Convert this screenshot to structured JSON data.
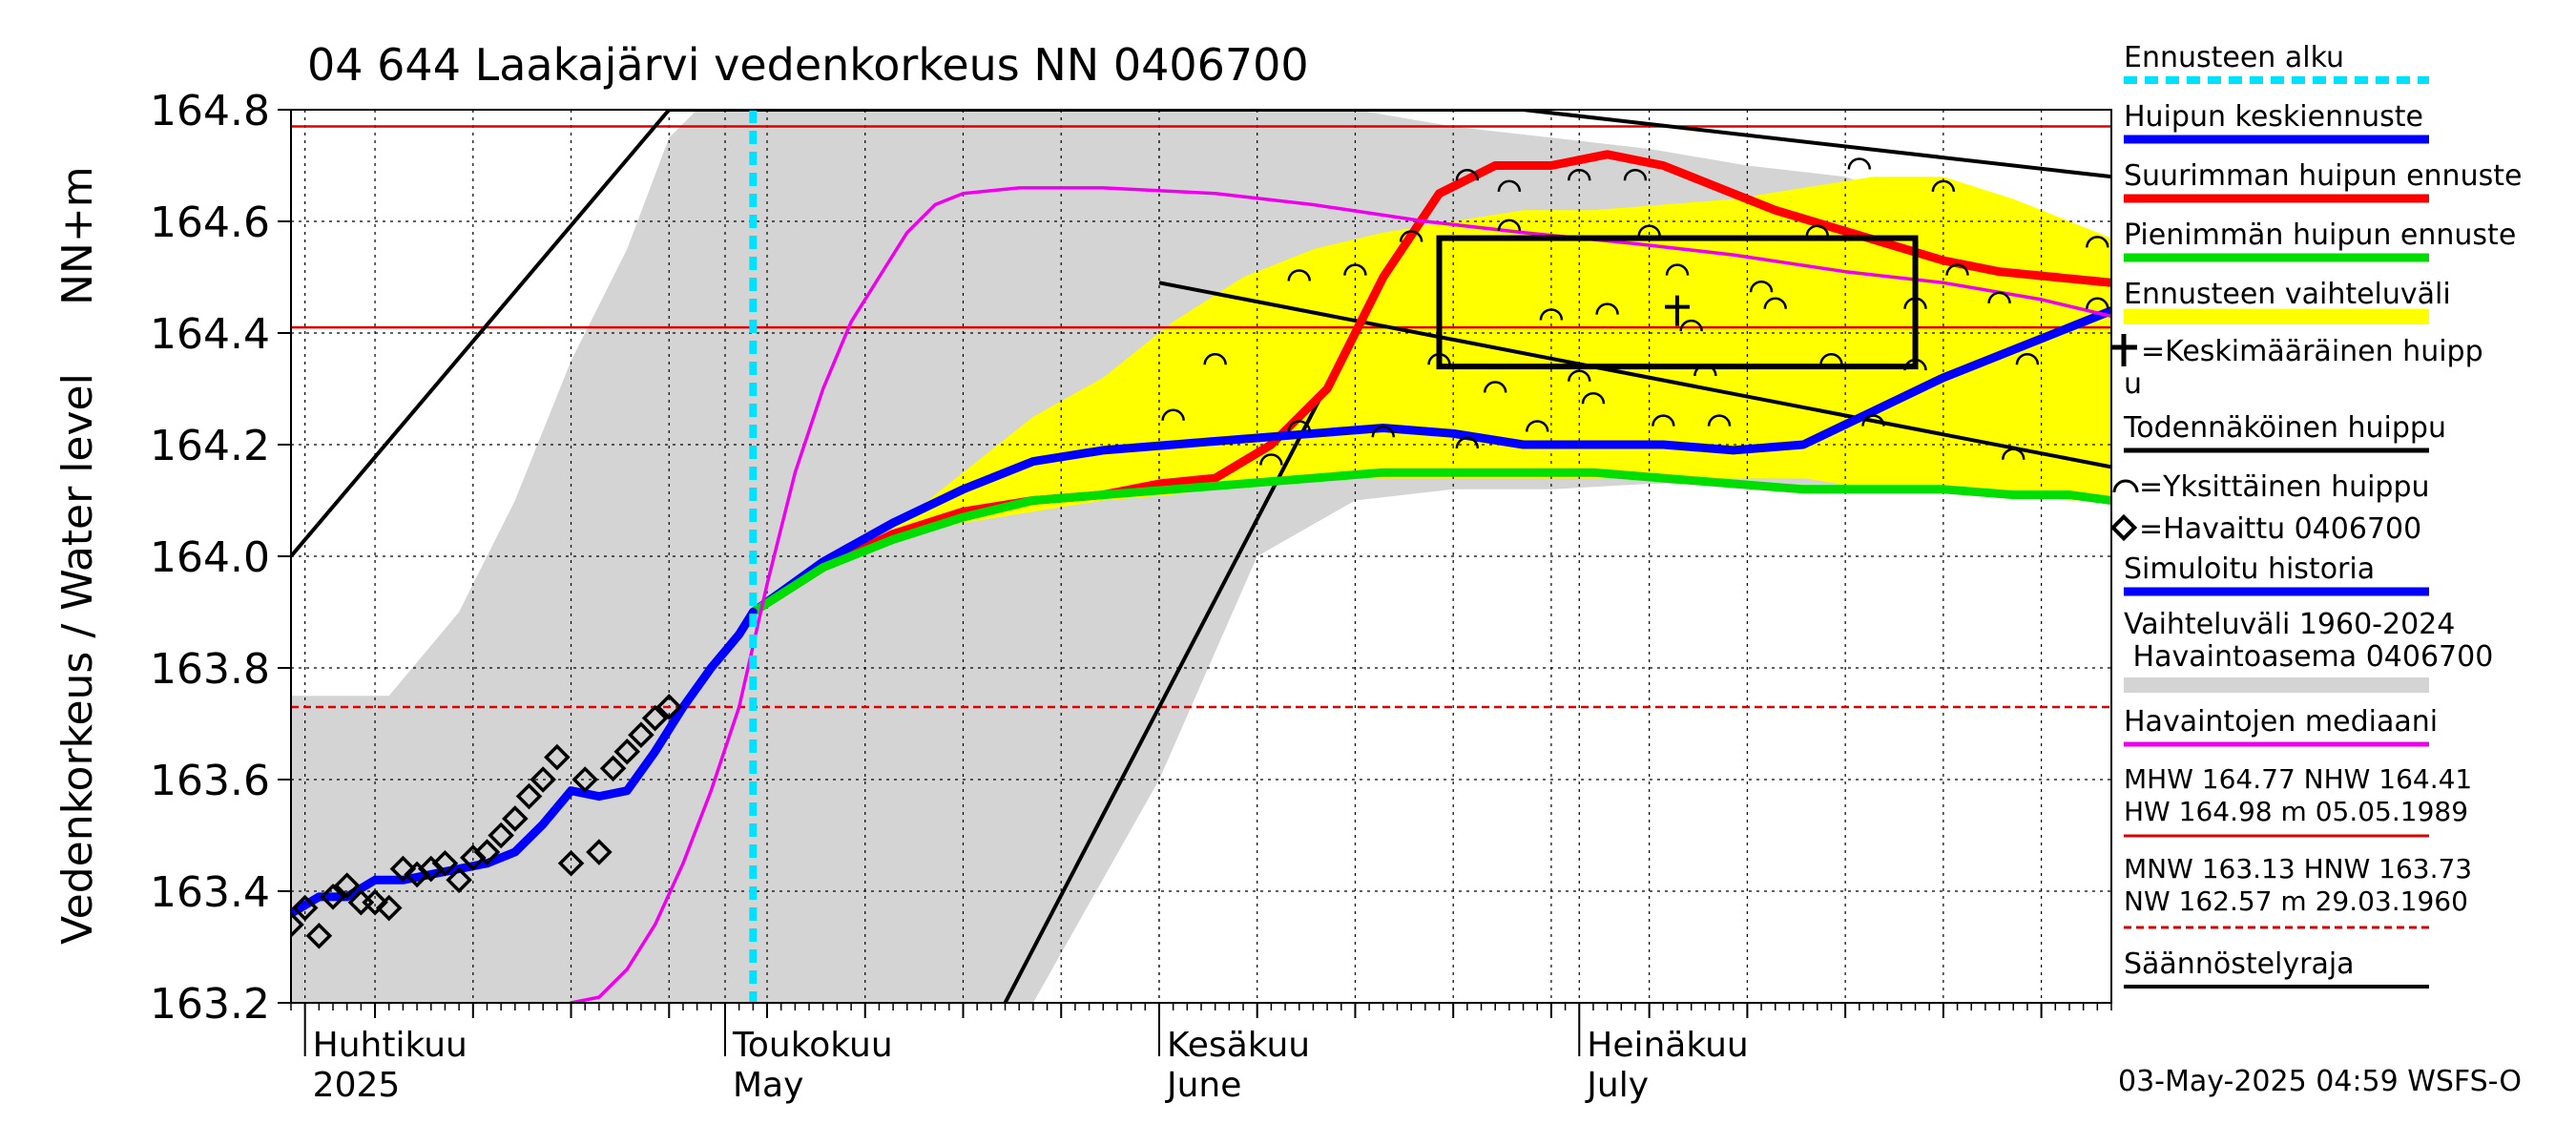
{
  "chart_data": {
    "type": "line",
    "title": "04 644 Laakajärvi vedenkorkeus NN 0406700",
    "ylabel": "Vedenkorkeus / Water level",
    "ylabel_unit": "NN+m",
    "ylim": [
      163.2,
      164.8
    ],
    "yticks": [
      163.2,
      163.4,
      163.6,
      163.8,
      164.0,
      164.2,
      164.4,
      164.6,
      164.8
    ],
    "ytick_labels": [
      "163.2",
      "163.4",
      "163.6",
      "163.8",
      "164.0",
      "164.2",
      "164.4",
      "164.6",
      "164.8"
    ],
    "x_range": [
      "2025-03-31",
      "2025-08-08"
    ],
    "month_labels": [
      {
        "date": "2025-04-01",
        "line1": "Huhtikuu",
        "line2": "2025"
      },
      {
        "date": "2025-05-01",
        "line1": "Toukokuu",
        "line2": "May"
      },
      {
        "date": "2025-06-01",
        "line1": "Kesäkuu",
        "line2": "June"
      },
      {
        "date": "2025-07-01",
        "line1": "Heinäkuu",
        "line2": "July"
      }
    ],
    "grid": true,
    "forecast_start": "2025-05-03",
    "reference_lines": [
      {
        "name": "MHW",
        "value": 164.77,
        "style": "solid",
        "color": "#e00000"
      },
      {
        "name": "NHW",
        "value": 164.41,
        "style": "solid",
        "color": "#e00000"
      },
      {
        "name": "HNW",
        "value": 163.73,
        "style": "dashed",
        "color": "#e00000"
      }
    ],
    "history_range": {
      "x": [
        "2025-03-31",
        "2025-04-07",
        "2025-04-12",
        "2025-04-16",
        "2025-04-20",
        "2025-04-24",
        "2025-04-27",
        "2025-04-29",
        "2025-04-30",
        "2025-05-03",
        "2025-05-10",
        "2025-05-17",
        "2025-05-23",
        "2025-06-01",
        "2025-06-08",
        "2025-06-15",
        "2025-06-22",
        "2025-06-29",
        "2025-07-06",
        "2025-07-13",
        "2025-07-20",
        "2025-07-27",
        "2025-08-03",
        "2025-08-08"
      ],
      "upper": [
        163.75,
        163.75,
        163.9,
        164.1,
        164.35,
        164.55,
        164.75,
        164.8,
        164.8,
        164.8,
        164.8,
        164.8,
        164.8,
        164.8,
        164.8,
        164.8,
        164.77,
        164.75,
        164.73,
        164.7,
        164.68,
        164.62,
        164.58,
        164.54
      ],
      "lower": [
        163.2,
        163.2,
        163.2,
        163.2,
        163.2,
        163.2,
        163.2,
        163.2,
        163.2,
        163.2,
        163.2,
        163.2,
        163.2,
        163.6,
        164.0,
        164.1,
        164.12,
        164.12,
        164.13,
        164.13,
        164.12,
        164.12,
        164.11,
        164.1
      ]
    },
    "forecast_range": {
      "x": [
        "2025-05-03",
        "2025-05-08",
        "2025-05-13",
        "2025-05-18",
        "2025-05-23",
        "2025-05-28",
        "2025-06-02",
        "2025-06-07",
        "2025-06-12",
        "2025-06-17",
        "2025-06-22",
        "2025-06-27",
        "2025-07-02",
        "2025-07-07",
        "2025-07-12",
        "2025-07-17",
        "2025-07-22",
        "2025-07-27",
        "2025-08-01",
        "2025-08-05",
        "2025-08-08"
      ],
      "upper": [
        163.9,
        163.98,
        164.05,
        164.15,
        164.25,
        164.32,
        164.42,
        164.5,
        164.55,
        164.58,
        164.6,
        164.62,
        164.62,
        164.63,
        164.64,
        164.66,
        164.68,
        164.68,
        164.64,
        164.6,
        164.57
      ],
      "lower": [
        163.9,
        163.98,
        164.03,
        164.06,
        164.08,
        164.1,
        164.11,
        164.13,
        164.14,
        164.14,
        164.14,
        164.14,
        164.14,
        164.14,
        164.14,
        164.14,
        164.12,
        164.12,
        164.11,
        164.1,
        164.1
      ]
    },
    "series": [
      {
        "name": "Suurimman huipun ennuste",
        "color": "#ff0000",
        "x": [
          "2025-05-03",
          "2025-05-08",
          "2025-05-13",
          "2025-05-18",
          "2025-05-23",
          "2025-05-28",
          "2025-06-01",
          "2025-06-05",
          "2025-06-09",
          "2025-06-13",
          "2025-06-17",
          "2025-06-21",
          "2025-06-25",
          "2025-06-29",
          "2025-07-03",
          "2025-07-07",
          "2025-07-11",
          "2025-07-15",
          "2025-07-19",
          "2025-07-23",
          "2025-07-27",
          "2025-07-31",
          "2025-08-04",
          "2025-08-08"
        ],
        "y": [
          163.9,
          163.98,
          164.04,
          164.08,
          164.1,
          164.11,
          164.13,
          164.14,
          164.2,
          164.3,
          164.5,
          164.65,
          164.7,
          164.7,
          164.72,
          164.7,
          164.66,
          164.62,
          164.59,
          164.56,
          164.53,
          164.51,
          164.5,
          164.49
        ]
      },
      {
        "name": "Huipun keskiennuste",
        "color": "#0000ff",
        "x": [
          "2025-05-03",
          "2025-05-08",
          "2025-05-13",
          "2025-05-18",
          "2025-05-23",
          "2025-05-28",
          "2025-06-02",
          "2025-06-07",
          "2025-06-12",
          "2025-06-17",
          "2025-06-22",
          "2025-06-27",
          "2025-07-02",
          "2025-07-07",
          "2025-07-12",
          "2025-07-17",
          "2025-07-22",
          "2025-07-27",
          "2025-08-01",
          "2025-08-05",
          "2025-08-08"
        ],
        "y": [
          163.9,
          163.99,
          164.06,
          164.12,
          164.17,
          164.19,
          164.2,
          164.21,
          164.22,
          164.23,
          164.22,
          164.2,
          164.2,
          164.2,
          164.19,
          164.2,
          164.26,
          164.32,
          164.37,
          164.41,
          164.44
        ]
      },
      {
        "name": "Pienimmän huipun ennuste",
        "color": "#00dd00",
        "x": [
          "2025-05-03",
          "2025-05-08",
          "2025-05-13",
          "2025-05-18",
          "2025-05-23",
          "2025-05-28",
          "2025-06-02",
          "2025-06-07",
          "2025-06-12",
          "2025-06-17",
          "2025-06-22",
          "2025-06-27",
          "2025-07-02",
          "2025-07-07",
          "2025-07-12",
          "2025-07-17",
          "2025-07-22",
          "2025-07-27",
          "2025-08-01",
          "2025-08-05",
          "2025-08-08"
        ],
        "y": [
          163.9,
          163.98,
          164.03,
          164.07,
          164.1,
          164.11,
          164.12,
          164.13,
          164.14,
          164.15,
          164.15,
          164.15,
          164.15,
          164.14,
          164.13,
          164.12,
          164.12,
          164.12,
          164.11,
          164.11,
          164.1
        ]
      },
      {
        "name": "Havaintojen mediaani",
        "color": "#ee00ee",
        "x": [
          "2025-04-20",
          "2025-04-22",
          "2025-04-24",
          "2025-04-26",
          "2025-04-28",
          "2025-04-30",
          "2025-05-02",
          "2025-05-04",
          "2025-05-06",
          "2025-05-08",
          "2025-05-10",
          "2025-05-12",
          "2025-05-14",
          "2025-05-16",
          "2025-05-18",
          "2025-05-22",
          "2025-05-28",
          "2025-06-05",
          "2025-06-12",
          "2025-06-20",
          "2025-06-27",
          "2025-07-05",
          "2025-07-12",
          "2025-07-20",
          "2025-07-27",
          "2025-08-03",
          "2025-08-08"
        ],
        "y": [
          163.2,
          163.21,
          163.26,
          163.34,
          163.45,
          163.58,
          163.73,
          163.95,
          164.15,
          164.3,
          164.42,
          164.5,
          164.58,
          164.63,
          164.65,
          164.66,
          164.66,
          164.65,
          164.63,
          164.6,
          164.58,
          164.56,
          164.54,
          164.51,
          164.49,
          164.46,
          164.43
        ]
      },
      {
        "name": "Simuloitu historia",
        "color": "#0000ff",
        "x": [
          "2025-03-31",
          "2025-04-02",
          "2025-04-04",
          "2025-04-06",
          "2025-04-08",
          "2025-04-10",
          "2025-04-12",
          "2025-04-14",
          "2025-04-16",
          "2025-04-18",
          "2025-04-20",
          "2025-04-22",
          "2025-04-24",
          "2025-04-26",
          "2025-04-28",
          "2025-04-30",
          "2025-05-02",
          "2025-05-03"
        ],
        "y": [
          163.36,
          163.39,
          163.39,
          163.42,
          163.42,
          163.43,
          163.44,
          163.45,
          163.47,
          163.52,
          163.58,
          163.57,
          163.58,
          163.65,
          163.73,
          163.8,
          163.86,
          163.9
        ]
      }
    ],
    "observed": {
      "name": "Havaittu 0406700",
      "x": [
        "2025-03-31",
        "2025-04-01",
        "2025-04-02",
        "2025-04-03",
        "2025-04-04",
        "2025-04-05",
        "2025-04-06",
        "2025-04-07",
        "2025-04-08",
        "2025-04-09",
        "2025-04-10",
        "2025-04-11",
        "2025-04-12",
        "2025-04-13",
        "2025-04-14",
        "2025-04-15",
        "2025-04-16",
        "2025-04-17",
        "2025-04-18",
        "2025-04-19",
        "2025-04-20",
        "2025-04-21",
        "2025-04-22",
        "2025-04-23",
        "2025-04-24",
        "2025-04-25",
        "2025-04-26",
        "2025-04-27"
      ],
      "y": [
        163.34,
        163.37,
        163.32,
        163.39,
        163.41,
        163.38,
        163.38,
        163.37,
        163.44,
        163.43,
        163.44,
        163.45,
        163.42,
        163.46,
        163.47,
        163.5,
        163.53,
        163.57,
        163.6,
        163.64,
        163.45,
        163.6,
        163.47,
        163.62,
        163.65,
        163.68,
        163.71,
        163.73
      ]
    },
    "probable_peak_lines": [
      {
        "x": [
          "2025-03-31",
          "2025-04-27"
        ],
        "y": [
          164.0,
          164.8
        ]
      },
      {
        "x": [
          "2025-04-27",
          "2025-06-27"
        ],
        "y": [
          164.8,
          164.8
        ]
      },
      {
        "x": [
          "2025-06-27",
          "2025-08-08"
        ],
        "y": [
          164.8,
          164.68
        ]
      },
      {
        "x": [
          "2025-05-21",
          "2025-06-17"
        ],
        "y": [
          163.2,
          164.5
        ]
      },
      {
        "x": [
          "2025-06-01",
          "2025-08-08"
        ],
        "y": [
          164.49,
          164.16
        ]
      }
    ],
    "peak_box": {
      "x": [
        "2025-06-21",
        "2025-07-25"
      ],
      "y": [
        164.34,
        164.57
      ]
    },
    "mean_peak": {
      "x": "2025-07-08",
      "y": 164.44
    },
    "individual_peaks": {
      "x": [
        "2025-06-02",
        "2025-06-05",
        "2025-06-09",
        "2025-06-11",
        "2025-06-11",
        "2025-06-15",
        "2025-06-17",
        "2025-06-19",
        "2025-06-21",
        "2025-06-23",
        "2025-06-23",
        "2025-06-25",
        "2025-06-26",
        "2025-06-26",
        "2025-06-28",
        "2025-06-29",
        "2025-07-01",
        "2025-07-01",
        "2025-07-02",
        "2025-07-03",
        "2025-07-05",
        "2025-07-06",
        "2025-07-07",
        "2025-07-08",
        "2025-07-09",
        "2025-07-10",
        "2025-07-11",
        "2025-07-14",
        "2025-07-15",
        "2025-07-18",
        "2025-07-19",
        "2025-07-21",
        "2025-07-22",
        "2025-07-25",
        "2025-07-25",
        "2025-07-27",
        "2025-07-28",
        "2025-07-31",
        "2025-08-01",
        "2025-08-02",
        "2025-08-07",
        "2025-08-07"
      ],
      "y": [
        164.25,
        164.35,
        164.17,
        164.5,
        164.23,
        164.51,
        164.22,
        164.57,
        164.35,
        164.68,
        164.2,
        164.3,
        164.66,
        164.59,
        164.23,
        164.43,
        164.32,
        164.68,
        164.28,
        164.44,
        164.68,
        164.58,
        164.24,
        164.51,
        164.41,
        164.33,
        164.24,
        164.48,
        164.45,
        164.58,
        164.35,
        164.7,
        164.24,
        164.45,
        164.34,
        164.66,
        164.51,
        164.46,
        164.18,
        164.35,
        164.45,
        164.56
      ]
    }
  },
  "legend": {
    "items": [
      {
        "key": "ennusteen_alku",
        "label": "Ennusteen alku",
        "color": "#00e0ff"
      },
      {
        "key": "keskiennuste",
        "label": "Huipun keskiennuste",
        "color": "#0000ff"
      },
      {
        "key": "suurin",
        "label": "Suurimman huipun ennuste",
        "color": "#ff0000"
      },
      {
        "key": "pienin",
        "label": "Pienimmän huipun ennuste",
        "color": "#00dd00"
      },
      {
        "key": "vaihteluvali",
        "label": "Ennusteen vaihteluväli",
        "color": "#ffff00"
      }
    ],
    "mean_peak_label_1": "=Keskimääräinen huipp",
    "mean_peak_label_2": "u",
    "probable_peak_label": "Todennäköinen huippu",
    "individual_peak_label": "=Yksittäinen huippu",
    "observed_label": "=Havaittu 0406700",
    "simulated_label": "Simuloitu historia",
    "history_label_1": "Vaihteluväli 1960-2024",
    "history_label_2": " Havaintoasema 0406700",
    "median_label": "Havaintojen mediaani",
    "hw_stats_1": "MHW 164.77 NHW 164.41",
    "hw_stats_2": "HW 164.98 m 05.05.1989",
    "nw_stats_1": "MNW 163.13 HNW 163.73",
    "nw_stats_2": "NW 162.57 m 29.03.1960",
    "regulation_label": "Säännöstelyraja"
  },
  "footer": {
    "timestamp": "03-May-2025 04:59 WSFS-O"
  },
  "colors": {
    "history_band": "#d4d4d4",
    "forecast_band": "#ffff00",
    "history_line": "#d4d4d4",
    "reference": "#e00000"
  }
}
